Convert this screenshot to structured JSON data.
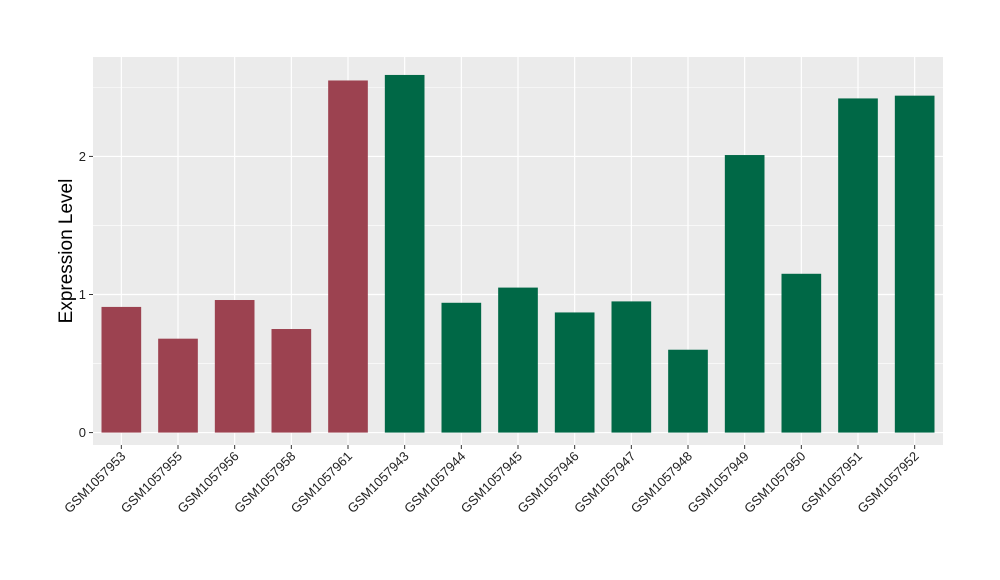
{
  "chart_data": {
    "type": "bar",
    "ylabel": "Expression Level",
    "xlabel": "",
    "ylim": [
      -0.09,
      2.72
    ],
    "yticks": [
      0,
      1,
      2
    ],
    "grid": true,
    "legend": "none",
    "background": "#EBEBEB",
    "categories": [
      "GSM1057953",
      "GSM1057955",
      "GSM1057956",
      "GSM1057958",
      "GSM1057961",
      "GSM1057943",
      "GSM1057944",
      "GSM1057945",
      "GSM1057946",
      "GSM1057947",
      "GSM1057948",
      "GSM1057949",
      "GSM1057950",
      "GSM1057951",
      "GSM1057952"
    ],
    "values": [
      0.91,
      0.68,
      0.96,
      0.75,
      2.55,
      2.59,
      0.94,
      1.05,
      0.87,
      0.95,
      0.6,
      2.01,
      1.15,
      2.42,
      2.44
    ],
    "groups": [
      "a",
      "a",
      "a",
      "a",
      "a",
      "b",
      "b",
      "b",
      "b",
      "b",
      "b",
      "b",
      "b",
      "b",
      "b"
    ],
    "colors": {
      "a": "#9C4250",
      "b": "#006846"
    }
  }
}
